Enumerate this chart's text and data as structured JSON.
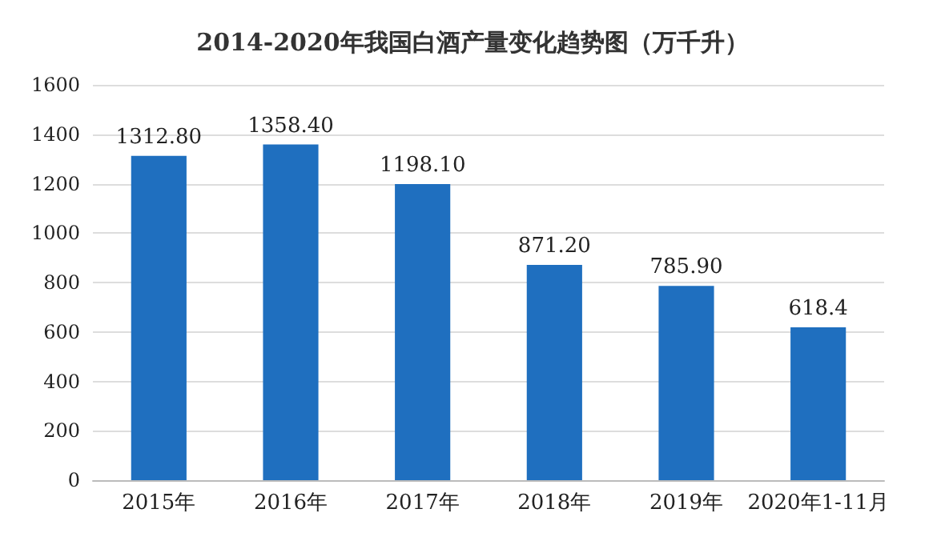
{
  "chart_data": {
    "type": "bar",
    "title": "2014-2020年我国白酒产量变化趋势图（万千升）",
    "categories": [
      "2015年",
      "2016年",
      "2017年",
      "2018年",
      "2019年",
      "2020年1-11月"
    ],
    "values": [
      1312.8,
      1358.4,
      1198.1,
      871.2,
      785.9,
      618.4
    ],
    "value_labels": [
      "1312.80",
      "1358.40",
      "1198.10",
      "871.20",
      "785.90",
      "618.4"
    ],
    "color": "#1f6fbf",
    "ylim": [
      0,
      1600
    ],
    "yticks": [
      0,
      200,
      400,
      600,
      800,
      1000,
      1200,
      1400,
      1600
    ],
    "grid": "y"
  }
}
